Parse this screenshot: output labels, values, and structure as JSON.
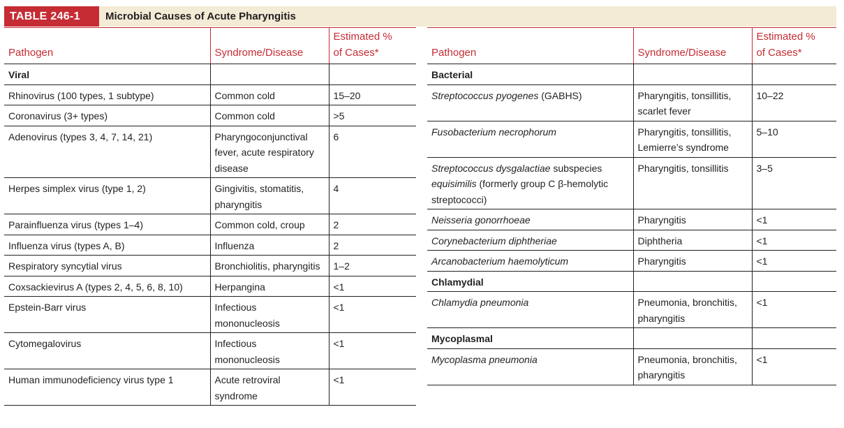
{
  "header": {
    "table_number": "TABLE 246-1",
    "title": "Microbial Causes of Acute Pharyngitis"
  },
  "columns": {
    "pathogen": "Pathogen",
    "syndrome": "Syndrome/Disease",
    "estimated_line1": "Estimated %",
    "estimated_line2": "of Cases*"
  },
  "left_rows": [
    {
      "pathogen": "Viral",
      "syndrome": "",
      "estimate": "",
      "category": true
    },
    {
      "pathogen": "Rhinovirus (100 types, 1 subtype)",
      "syndrome": "Common cold",
      "estimate": "15–20"
    },
    {
      "pathogen": "Coronavirus (3+ types)",
      "syndrome": "Common cold",
      "estimate": ">5"
    },
    {
      "pathogen": "Adenovirus (types 3, 4, 7, 14, 21)",
      "syndrome": "Pharyngoconjunctival fever, acute respiratory disease",
      "estimate": "6"
    },
    {
      "pathogen": "Herpes simplex virus (type 1, 2)",
      "syndrome": "Gingivitis, stomatitis, pharyngitis",
      "estimate": "4"
    },
    {
      "pathogen": "Parainfluenza virus (types 1–4)",
      "syndrome": "Common cold, croup",
      "estimate": "2"
    },
    {
      "pathogen": "Influenza virus (types A, B)",
      "syndrome": "Influenza",
      "estimate": "2"
    },
    {
      "pathogen": "Respiratory syncytial virus",
      "syndrome": "Bronchiolitis, pharyngitis",
      "estimate": "1–2"
    },
    {
      "pathogen": "Coxsackievirus A (types 2, 4, 5, 6, 8, 10)",
      "syndrome": "Herpangina",
      "estimate": "<1"
    },
    {
      "pathogen": "Epstein-Barr virus",
      "syndrome": "Infectious mononucleosis",
      "estimate": "<1"
    },
    {
      "pathogen": "Cytomegalovirus",
      "syndrome": "Infectious mononucleosis",
      "estimate": "<1"
    },
    {
      "pathogen": "Human immunodeficiency virus type 1",
      "syndrome": "Acute retroviral syndrome",
      "estimate": "<1"
    }
  ],
  "right_rows": [
    {
      "pathogen": "Bacterial",
      "syndrome": "",
      "estimate": "",
      "category": true
    },
    {
      "pathogen_italic": "Streptococcus pyogenes",
      "pathogen_rest": " (GABHS)",
      "syndrome": "Pharyngitis, tonsillitis, scarlet fever",
      "estimate": "10–22"
    },
    {
      "pathogen_italic": "Fusobacterium necrophorum",
      "pathogen_rest": "",
      "syndrome": "Pharyngitis, tonsillitis, Lemierre’s syndrome",
      "estimate": "5–10"
    },
    {
      "pathogen_italic": "Streptococcus dysgalactiae",
      "pathogen_mid": " subspecies ",
      "pathogen_italic2": "equisimilis",
      "pathogen_rest": " (formerly group C β-hemolytic streptococci)",
      "syndrome": "Pharyngitis, tonsillitis",
      "estimate": "3–5"
    },
    {
      "pathogen_italic": "Neisseria gonorrhoeae",
      "pathogen_rest": "",
      "syndrome": "Pharyngitis",
      "estimate": "<1"
    },
    {
      "pathogen_italic": "Corynebacterium diphtheriae",
      "pathogen_rest": "",
      "syndrome": "Diphtheria",
      "estimate": "<1"
    },
    {
      "pathogen_italic": "Arcanobacterium haemolyticum",
      "pathogen_rest": "",
      "syndrome": "Pharyngitis",
      "estimate": "<1"
    },
    {
      "pathogen": "Chlamydial",
      "syndrome": "",
      "estimate": "",
      "category": true
    },
    {
      "pathogen_italic": "Chlamydia pneumonia",
      "pathogen_rest": "",
      "syndrome": "Pneumonia, bronchitis, pharyngitis",
      "estimate": "<1"
    },
    {
      "pathogen": "Mycoplasmal",
      "syndrome": "",
      "estimate": "",
      "category": true
    },
    {
      "pathogen_italic": "Mycoplasma pneumonia",
      "pathogen_rest": "",
      "syndrome": "Pneumonia, bronchitis, pharyngitis",
      "estimate": "<1"
    }
  ]
}
